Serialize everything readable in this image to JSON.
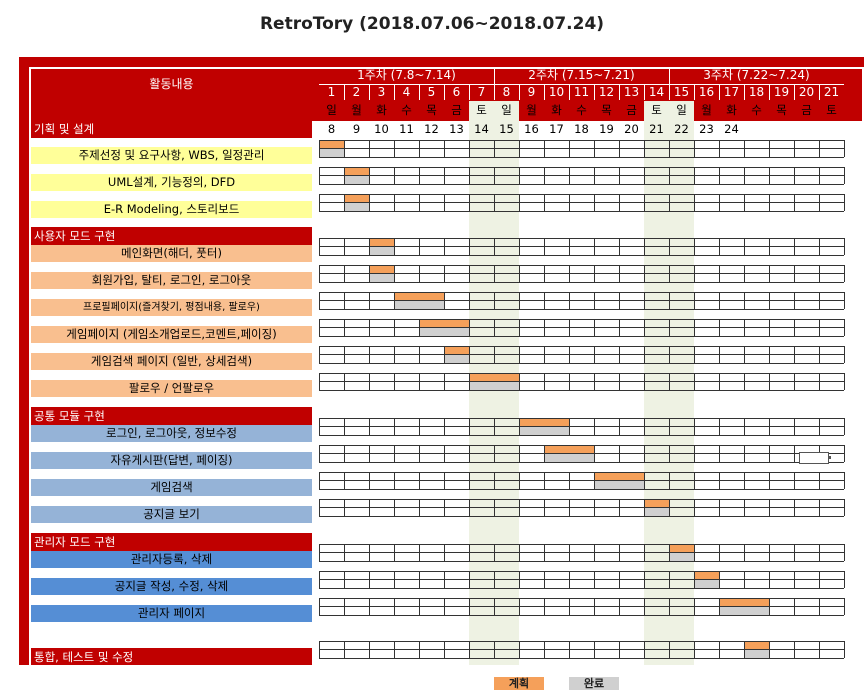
{
  "title": "RetroTory (2018.07.06~2018.07.24)",
  "header": {
    "activity_label": "활동내용",
    "weeks": [
      {
        "label": "1주차 (7.8~7.14)",
        "start": 1,
        "end": 7
      },
      {
        "label": "2주차 (7.15~7.21)",
        "start": 8,
        "end": 14
      },
      {
        "label": "3주차 (7.22~7.24)",
        "start": 15,
        "end": 21
      }
    ],
    "day_numbers": [
      "1",
      "2",
      "3",
      "4",
      "5",
      "6",
      "7",
      "8",
      "9",
      "10",
      "11",
      "12",
      "13",
      "14",
      "15",
      "16",
      "17",
      "18",
      "19",
      "20",
      "21"
    ],
    "weekdays": [
      "일",
      "월",
      "화",
      "수",
      "목",
      "금",
      "토",
      "일",
      "월",
      "화",
      "수",
      "목",
      "금",
      "토",
      "일",
      "월",
      "화",
      "수",
      "목",
      "금",
      "토"
    ],
    "dates": [
      "8",
      "9",
      "10",
      "11",
      "12",
      "13",
      "14",
      "15",
      "16",
      "17",
      "18",
      "19",
      "20",
      "21",
      "22",
      "23",
      "24"
    ]
  },
  "weekend_columns": [
    7,
    8,
    14,
    15
  ],
  "rows": [
    {
      "type": "section",
      "label": "기획 및 설계"
    },
    {
      "type": "task",
      "label": "주제선정 및 요구사항, WBS, 일정관리",
      "color": "#ffff99",
      "plan": [
        1,
        1
      ],
      "done": [
        1,
        1
      ]
    },
    {
      "type": "task",
      "label": "UML설계, 기능정의, DFD",
      "color": "#ffff99",
      "plan": [
        2,
        2
      ],
      "done": [
        2,
        2
      ]
    },
    {
      "type": "task",
      "label": "E-R Modeling, 스토리보드",
      "color": "#ffff99",
      "plan": [
        2,
        2
      ],
      "done": [
        2,
        2
      ]
    },
    {
      "type": "section",
      "label": "사용자 모드 구현"
    },
    {
      "type": "task",
      "label": "메인화면(해더, 풋터)",
      "color": "#f9bf8f",
      "plan": [
        3,
        3
      ],
      "done": [
        3,
        3
      ]
    },
    {
      "type": "task",
      "label": "회원가입, 탈티, 로그인, 로그아웃",
      "color": "#f9bf8f",
      "plan": [
        3,
        3
      ],
      "done": [
        3,
        3
      ]
    },
    {
      "type": "task",
      "label": "프로필페이지(즐겨찾기, 평점내용, 팔로우)",
      "color": "#f9bf8f",
      "small": true,
      "plan": [
        4,
        5
      ],
      "done": [
        4,
        5
      ]
    },
    {
      "type": "task",
      "label": "게임페이지 (게임소개업로드,코멘트,페이징)",
      "color": "#f9bf8f",
      "plan": [
        5,
        6
      ],
      "done": [
        5,
        6
      ]
    },
    {
      "type": "task",
      "label": "게임검색 페이지 (일반, 상세검색)",
      "color": "#f9bf8f",
      "plan": [
        6,
        6
      ],
      "done": [
        6,
        6
      ]
    },
    {
      "type": "task",
      "label": "팔로우 / 언팔로우",
      "color": "#f9bf8f",
      "plan": [
        7,
        8
      ],
      "done": [
        7,
        8
      ]
    },
    {
      "type": "section",
      "label": "공통 모듈 구현"
    },
    {
      "type": "task",
      "label": "로그인, 로그아웃, 정보수정",
      "color": "#95b3d7",
      "plan": [
        9,
        10
      ],
      "done": [
        9,
        10
      ]
    },
    {
      "type": "task",
      "label": "자유게시판(답변, 페이징)",
      "color": "#95b3d7",
      "plan": [
        10,
        11
      ],
      "done": [
        10,
        11
      ]
    },
    {
      "type": "task",
      "label": "게임검색",
      "color": "#95b3d7",
      "plan": [
        12,
        13
      ],
      "done": [
        12,
        13
      ]
    },
    {
      "type": "task",
      "label": "공지글 보기",
      "color": "#95b3d7",
      "plan": [
        14,
        14
      ],
      "done": [
        14,
        14
      ]
    },
    {
      "type": "section",
      "label": "관리자 모드 구현"
    },
    {
      "type": "task",
      "label": "관리자등록, 삭제",
      "color": "#558ed5",
      "plan": [
        15,
        15
      ],
      "done": [
        15,
        15
      ]
    },
    {
      "type": "task",
      "label": "공지글 작성, 수정, 삭제",
      "color": "#558ed5",
      "plan": [
        16,
        16
      ],
      "done": [
        16,
        16
      ]
    },
    {
      "type": "task",
      "label": "관리자 페이지",
      "color": "#558ed5",
      "plan": [
        17,
        18
      ],
      "done": [
        17,
        18
      ]
    },
    {
      "type": "blank"
    },
    {
      "type": "section_task",
      "label": "통합, 테스트 및 수정",
      "plan": [
        18,
        18
      ],
      "done": [
        18,
        18
      ]
    }
  ],
  "legend": {
    "plan_label": "계획",
    "done_label": "완료",
    "plan_color": "#f5a05a",
    "done_color": "#d0d0d0"
  }
}
